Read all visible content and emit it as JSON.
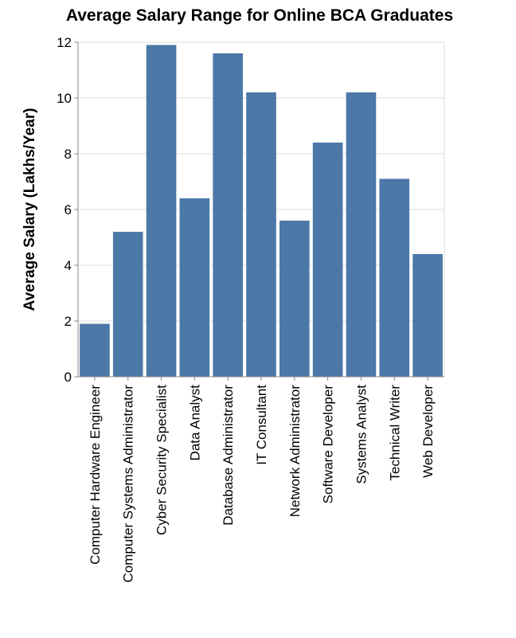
{
  "chart_data": {
    "type": "bar",
    "title": "Average Salary Range for Online BCA Graduates",
    "xlabel": "",
    "ylabel": "Average Salary (Lakhs/Year)",
    "ylim": [
      0,
      12
    ],
    "yticks": [
      0,
      2,
      4,
      6,
      8,
      10,
      12
    ],
    "grid": true,
    "bar_color": "#4c78a8",
    "categories": [
      "Computer Hardware Engineer",
      "Computer Systems Administrator",
      "Cyber Security Specialist",
      "Data Analyst",
      "Database Administrator",
      "IT Consultant",
      "Network Administrator",
      "Software Developer",
      "Systems Analyst",
      "Technical Writer",
      "Web Developer"
    ],
    "values": [
      1.9,
      5.2,
      11.9,
      6.4,
      11.6,
      10.2,
      5.6,
      8.4,
      10.2,
      7.1,
      4.4
    ]
  }
}
